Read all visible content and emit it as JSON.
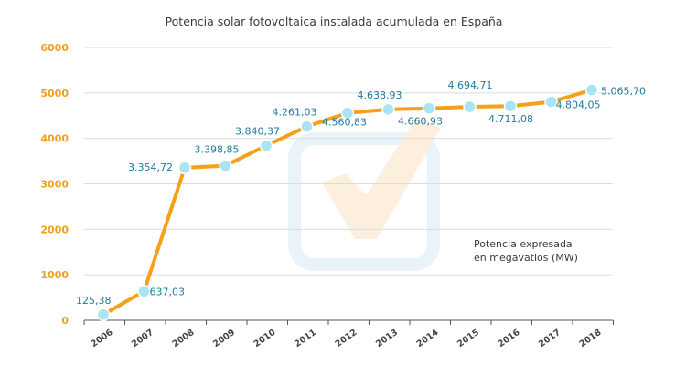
{
  "chart_data": {
    "type": "line",
    "title": "Potencia solar fotovoltaica instalada acumulada en España",
    "annotation": [
      "Potencia expresada",
      "en megavatios (MW)"
    ],
    "categories": [
      "2006",
      "2007",
      "2008",
      "2009",
      "2010",
      "2011",
      "2012",
      "2013",
      "2014",
      "2015",
      "2016",
      "2017",
      "2018"
    ],
    "values": [
      125.38,
      637.03,
      3354.72,
      3398.85,
      3840.37,
      4261.03,
      4560.83,
      4638.93,
      4660.93,
      4694.71,
      4711.08,
      4804.05,
      5065.7
    ],
    "data_labels": [
      "125,38",
      "637,03",
      "3.354,72",
      "3.398,85",
      "3.840,37",
      "4.261,03",
      "4.560,83",
      "4.638,93",
      "4.660,93",
      "4.694,71",
      "4.711,08",
      "4.804,05",
      "5.065,70"
    ],
    "yticks": [
      0,
      1000,
      2000,
      3000,
      4000,
      5000,
      6000
    ],
    "ylim": [
      0,
      6000
    ],
    "grid": true,
    "colors": {
      "line": "#f5a01a",
      "marker": "#a8e4f4",
      "axis_text": "#f0a020",
      "label_text": "#1f7a9c",
      "grid": "#dcdcdc"
    }
  }
}
